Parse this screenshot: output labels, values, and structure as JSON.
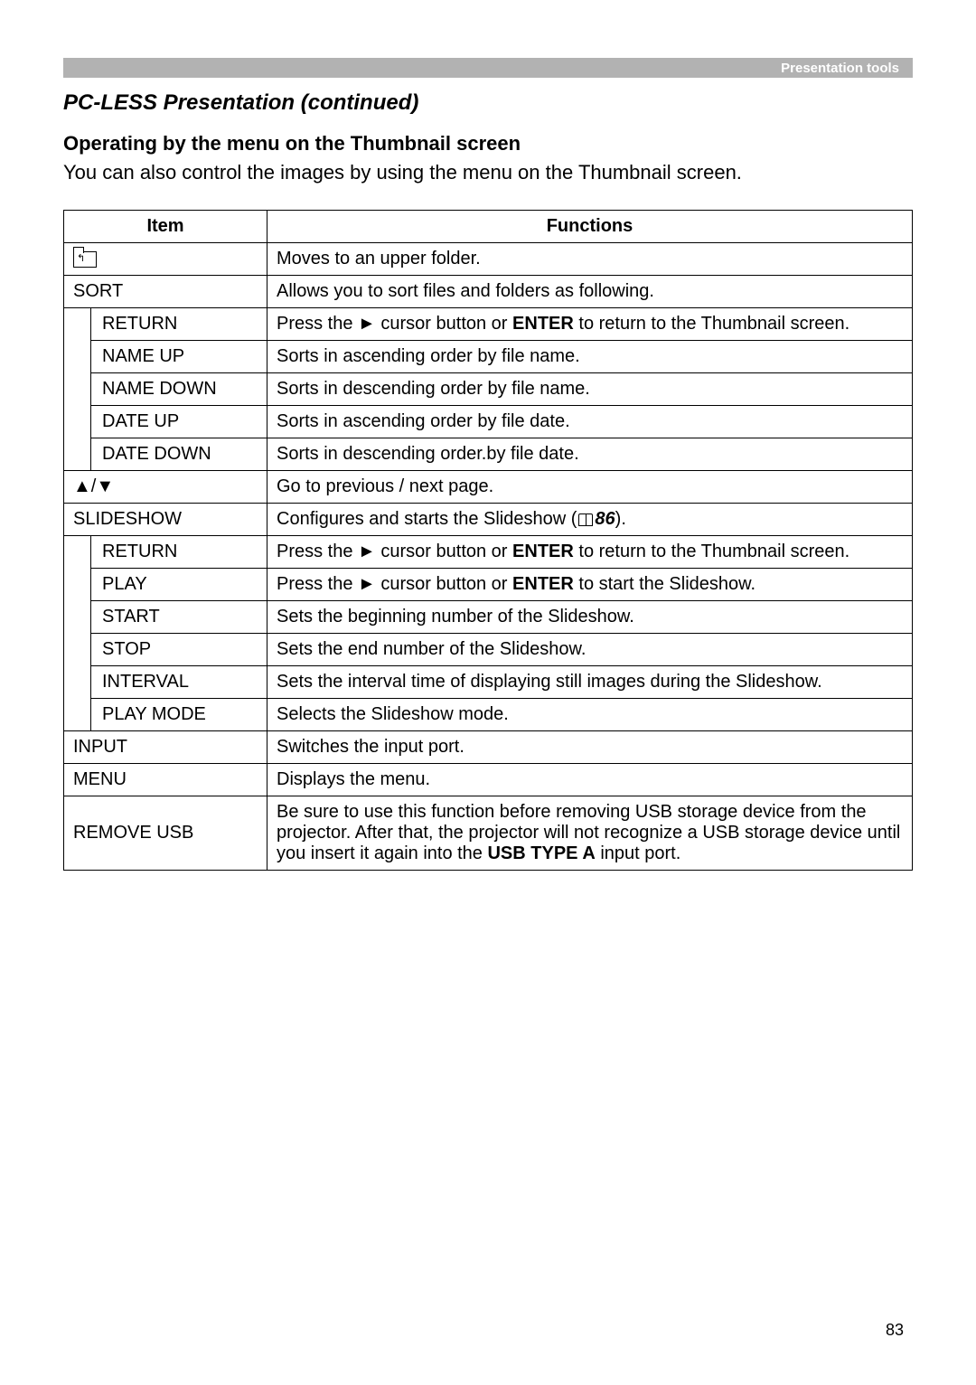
{
  "header": {
    "label": "Presentation tools"
  },
  "title": "PC-LESS Presentation (continued)",
  "subtitle": "Operating by the menu on the Thumbnail screen",
  "intro": "You can also control the images by using the menu on the Thumbnail screen.",
  "table": {
    "head_item": "Item",
    "head_func": "Functions",
    "rows": [
      {
        "type": "folder",
        "func": "Moves to an upper folder."
      },
      {
        "type": "top",
        "item": "SORT",
        "func": "Allows you to sort files and folders as following."
      },
      {
        "type": "sub",
        "item": "RETURN",
        "func_pre": "Press the ",
        "arrow": "►",
        "func_post": " cursor button or ",
        "bold1": "ENTER",
        "tail": " to return to the Thumbnail screen."
      },
      {
        "type": "sub",
        "item": "NAME UP",
        "func": "Sorts in ascending order by file name."
      },
      {
        "type": "sub",
        "item": "NAME DOWN",
        "func": "Sorts in descending order by file name."
      },
      {
        "type": "sub",
        "item": "DATE UP",
        "func": "Sorts in ascending order by file date."
      },
      {
        "type": "sub",
        "item": "DATE DOWN",
        "func": "Sorts in descending order.by file date."
      },
      {
        "type": "top",
        "item": "▲/▼",
        "func": "Go to previous / next page."
      },
      {
        "type": "slideshow",
        "item": "SLIDESHOW",
        "func_pre": "Configures and starts the Slideshow (",
        "ref": "86",
        "func_post": ")."
      },
      {
        "type": "sub",
        "item": "RETURN",
        "func_pre": "Press the ",
        "arrow": "►",
        "func_post": " cursor button or ",
        "bold1": "ENTER",
        "tail": " to return to the Thumbnail screen."
      },
      {
        "type": "sub",
        "item": "PLAY",
        "func_pre": "Press the ",
        "arrow": "►",
        "func_post": " cursor button or ",
        "bold1": "ENTER",
        "tail": " to start the Slideshow."
      },
      {
        "type": "sub",
        "item": "START",
        "func": "Sets the beginning number of the Slideshow."
      },
      {
        "type": "sub",
        "item": "STOP",
        "func": "Sets the end number of the Slideshow."
      },
      {
        "type": "sub",
        "item": "INTERVAL",
        "func": "Sets the interval time of displaying still images during the Slideshow."
      },
      {
        "type": "sub",
        "item": "PLAY MODE",
        "func": "Selects the Slideshow mode."
      },
      {
        "type": "top",
        "item": "INPUT",
        "func": "Switches the input port."
      },
      {
        "type": "top",
        "item": "MENU",
        "func": "Displays the menu."
      },
      {
        "type": "remove",
        "item": "REMOVE USB",
        "func_pre": "Be sure to use this function before removing USB storage device from the projector. After that, the projector will not recognize a USB storage device until you insert it again into the ",
        "bold1": "USB TYPE A",
        "tail": " input port."
      }
    ]
  },
  "page_number": "83"
}
